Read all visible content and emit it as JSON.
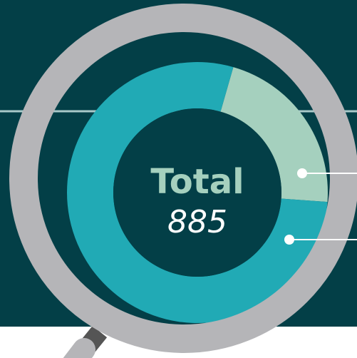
{
  "chart_data": {
    "type": "donut",
    "title": "Total",
    "total": 885,
    "series": [
      {
        "color": "#a5d0be",
        "values": [
          192
        ]
      },
      {
        "color": "#21aab5",
        "values": [
          693
        ]
      }
    ]
  }
}
